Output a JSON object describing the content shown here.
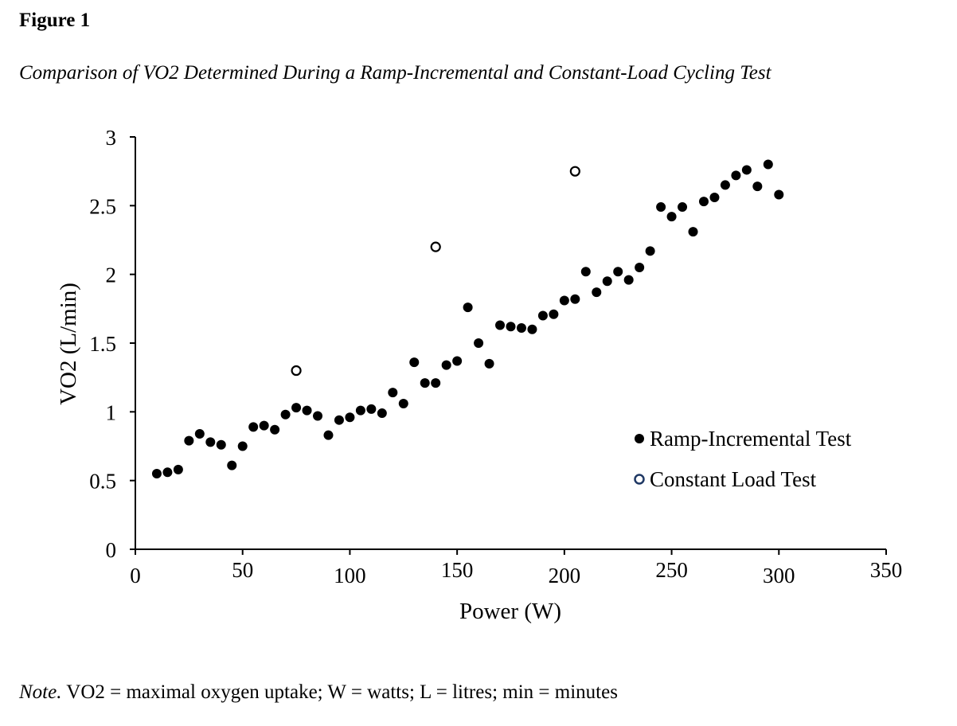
{
  "figure_label": "Figure 1",
  "figure_title": "Comparison of VO2 Determined During a Ramp-Incremental and Constant-Load Cycling Test",
  "note": {
    "lead": "Note.",
    "text": " VO2 = maximal oxygen uptake; W = watts; L = litres; min = minutes"
  },
  "chart_data": {
    "type": "scatter",
    "title": "",
    "xlabel": "Power (W)",
    "ylabel": "VO2 (L/min)",
    "xlim": [
      0,
      350
    ],
    "ylim": [
      0,
      3
    ],
    "xticks": [
      0,
      50,
      100,
      150,
      200,
      250,
      300,
      350
    ],
    "yticks": [
      0,
      0.5,
      1,
      1.5,
      2,
      2.5,
      3
    ],
    "xtick_labels": [
      "0",
      "50",
      "100",
      "150",
      "200",
      "250",
      "300",
      "350"
    ],
    "ytick_labels": [
      "0",
      "0.5",
      "1",
      "1.5",
      "2",
      "2.5",
      "3"
    ],
    "grid": false,
    "legend": "right",
    "series": [
      {
        "name": "Ramp-Incremental Test",
        "marker": "filled-circle",
        "color": "#000000",
        "x": [
          10,
          15,
          20,
          25,
          30,
          35,
          40,
          45,
          50,
          55,
          60,
          65,
          70,
          75,
          80,
          85,
          90,
          95,
          100,
          105,
          110,
          115,
          120,
          125,
          130,
          135,
          140,
          145,
          150,
          155,
          160,
          165,
          170,
          175,
          180,
          185,
          190,
          195,
          200,
          205,
          210,
          215,
          220,
          225,
          230,
          235,
          240,
          245,
          250,
          255,
          260,
          265,
          270,
          275,
          280,
          285,
          290,
          295,
          300
        ],
        "y": [
          0.55,
          0.56,
          0.58,
          0.79,
          0.84,
          0.78,
          0.76,
          0.61,
          0.75,
          0.89,
          0.9,
          0.87,
          0.98,
          1.03,
          1.01,
          0.97,
          0.83,
          0.94,
          0.96,
          1.01,
          1.02,
          0.99,
          1.14,
          1.06,
          1.36,
          1.21,
          1.21,
          1.34,
          1.37,
          1.76,
          1.5,
          1.35,
          1.63,
          1.62,
          1.61,
          1.6,
          1.7,
          1.71,
          1.81,
          1.82,
          2.02,
          1.87,
          1.95,
          2.02,
          1.96,
          2.05,
          2.17,
          2.49,
          2.42,
          2.49,
          2.31,
          2.53,
          2.56,
          2.65,
          2.72,
          2.76,
          2.64,
          2.8,
          2.58
        ]
      },
      {
        "name": "Constant Load Test",
        "marker": "open-circle",
        "color": "#000000",
        "legend_color": "#1f3864",
        "x": [
          75,
          140,
          205
        ],
        "y": [
          1.3,
          2.2,
          2.75
        ]
      }
    ]
  }
}
